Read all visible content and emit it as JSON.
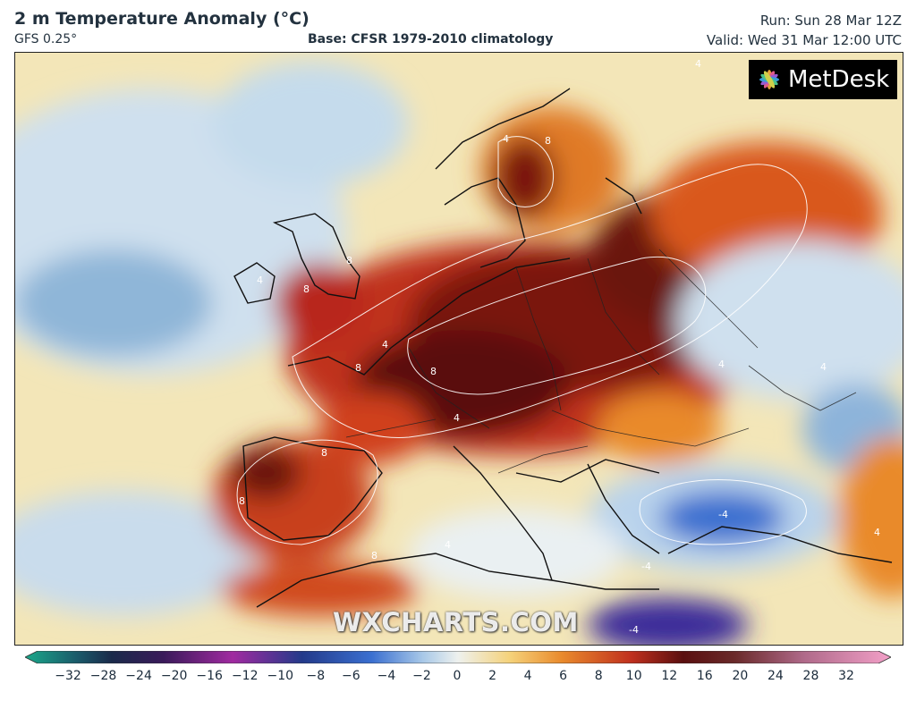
{
  "header": {
    "title": "2 m Temperature Anomaly (°C)",
    "model": "GFS 0.25°",
    "base": "Base: CFSR 1979-2010 climatology",
    "run": "Run: Sun 28 Mar 12Z",
    "valid": "Valid: Wed 31 Mar 12:00 UTC"
  },
  "logo": {
    "text": "MetDesk",
    "icon": "metdesk-flower-icon"
  },
  "watermark": "WXCHARTS.COM",
  "colorbar": {
    "ticks": [
      "−32",
      "−28",
      "−24",
      "−20",
      "−16",
      "−12",
      "−10",
      "−8",
      "−6",
      "−4",
      "−2",
      "0",
      "2",
      "4",
      "6",
      "8",
      "10",
      "12",
      "16",
      "20",
      "24",
      "28",
      "32"
    ],
    "colors": {
      "cold_extreme": "#1aa88a",
      "cold": "#233a8a",
      "purple": "#7a2a8a",
      "blue": "#3a6fd0",
      "lightblue": "#a9c9e8",
      "neutral": "#eef1ee",
      "yellow": "#f5d27a",
      "orange": "#e98a2c",
      "red": "#c0301e",
      "darkred": "#5a0f0f",
      "pink_extreme": "#f3a0c8"
    }
  },
  "map": {
    "contour_labels": [
      "4",
      "4",
      "8",
      "8",
      "4",
      "8",
      "8",
      "4",
      "8",
      "4",
      "4",
      "8",
      "4",
      "8",
      "4",
      "-4",
      "-4",
      "4",
      "8",
      "-4"
    ]
  }
}
